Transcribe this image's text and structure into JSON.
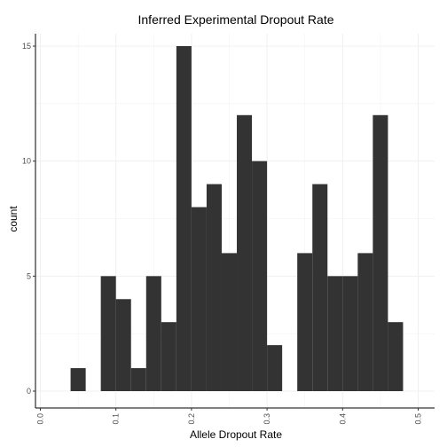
{
  "chart_data": {
    "type": "bar",
    "title": "Inferred Experimental Dropout Rate",
    "xlabel": "Allele Dropout Rate",
    "ylabel": "count",
    "bin_width": 0.02,
    "bins": [
      {
        "x0": 0.04,
        "count": 1
      },
      {
        "x0": 0.08,
        "count": 5
      },
      {
        "x0": 0.1,
        "count": 4
      },
      {
        "x0": 0.12,
        "count": 1
      },
      {
        "x0": 0.14,
        "count": 5
      },
      {
        "x0": 0.16,
        "count": 3
      },
      {
        "x0": 0.18,
        "count": 15
      },
      {
        "x0": 0.2,
        "count": 8
      },
      {
        "x0": 0.22,
        "count": 9
      },
      {
        "x0": 0.24,
        "count": 6
      },
      {
        "x0": 0.26,
        "count": 12
      },
      {
        "x0": 0.28,
        "count": 10
      },
      {
        "x0": 0.3,
        "count": 2
      },
      {
        "x0": 0.34,
        "count": 6
      },
      {
        "x0": 0.36,
        "count": 9
      },
      {
        "x0": 0.38,
        "count": 5
      },
      {
        "x0": 0.4,
        "count": 5
      },
      {
        "x0": 0.42,
        "count": 6
      },
      {
        "x0": 0.44,
        "count": 12
      },
      {
        "x0": 0.46,
        "count": 3
      }
    ],
    "xlim": [
      0.0,
      0.5
    ],
    "ylim": [
      0,
      16
    ],
    "x_ticks": [
      "0.0",
      "0.1",
      "0.2",
      "0.3",
      "0.4",
      "0.5"
    ],
    "x_tick_values": [
      0.0,
      0.1,
      0.2,
      0.3,
      0.4,
      0.5
    ],
    "y_ticks": [
      "0",
      "5",
      "10",
      "15"
    ],
    "y_tick_values": [
      0,
      5,
      10,
      15
    ],
    "grid": true,
    "bar_color": "#333333",
    "grid_color": "#f0f0f0",
    "axis_color": "#000000"
  }
}
